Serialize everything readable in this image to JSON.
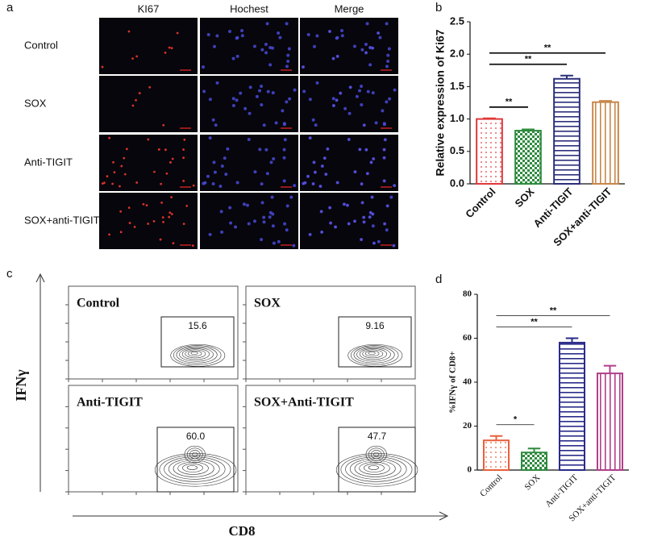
{
  "panel_labels": [
    "a",
    "b",
    "c",
    "d"
  ],
  "microscopy": {
    "columns": [
      "KI67",
      "Hochest",
      "Merge"
    ],
    "rows": [
      "Control",
      "SOX",
      "Anti-TIGIT",
      "SOX+anti-TIGIT"
    ]
  },
  "flow": {
    "y_label": "IFNγ",
    "x_label": "CD8",
    "plots": [
      {
        "title": "Control",
        "gate": "15.6"
      },
      {
        "title": "SOX",
        "gate": "9.16"
      },
      {
        "title": "Anti-TIGIT",
        "gate": "60.0"
      },
      {
        "title": "SOX+Anti-TIGIT",
        "gate": "47.7"
      }
    ]
  },
  "chart_data": [
    {
      "type": "bar",
      "y_label": "Relative expression of Ki67",
      "categories": [
        "Control",
        "SOX",
        "Anti-TIGIT",
        "SOX+anti-TIGIT"
      ],
      "values": [
        1.0,
        0.82,
        1.62,
        1.26
      ],
      "errors": [
        0.01,
        0.02,
        0.05,
        0.02
      ],
      "colors": [
        "#e0383a",
        "#2e8b3e",
        "#2b2f7a",
        "#c8874a"
      ],
      "patterns": [
        "dots",
        "checker",
        "hlines",
        "vlines"
      ],
      "ylim": [
        0,
        2.5
      ],
      "yticks": [
        {
          "value": 0,
          "label": "0.0"
        },
        0.5,
        {
          "value": 1,
          "label": "1.0"
        },
        1.5,
        {
          "value": 2,
          "label": "2.0"
        },
        2.5
      ],
      "annotations": [
        {
          "text": "**",
          "pair": [
            0,
            1
          ]
        },
        {
          "text": "**",
          "pair": [
            0,
            2
          ]
        },
        {
          "text": "**",
          "pair": [
            0,
            3
          ]
        }
      ]
    },
    {
      "type": "bar",
      "y_label": "%IFNγ of CD8+",
      "categories": [
        "Control",
        "SOX",
        "Anti-TIGIT",
        "SOX+anti-TIGIT"
      ],
      "values": [
        13.5,
        8,
        58,
        44
      ],
      "errors": [
        2,
        1.8,
        2,
        3.5
      ],
      "colors": [
        "#e8603a",
        "#2e8b3e",
        "#2a2b8a",
        "#b0408a"
      ],
      "patterns": [
        "dots",
        "checker",
        "hlines",
        "vlines"
      ],
      "ylim": [
        0,
        80
      ],
      "yticks": [
        0,
        20,
        40,
        60,
        80
      ],
      "annotations": [
        {
          "text": "*",
          "pair": [
            0,
            1
          ]
        },
        {
          "text": "**",
          "pair": [
            0,
            2
          ]
        },
        {
          "text": "**",
          "pair": [
            0,
            3
          ]
        }
      ]
    }
  ]
}
